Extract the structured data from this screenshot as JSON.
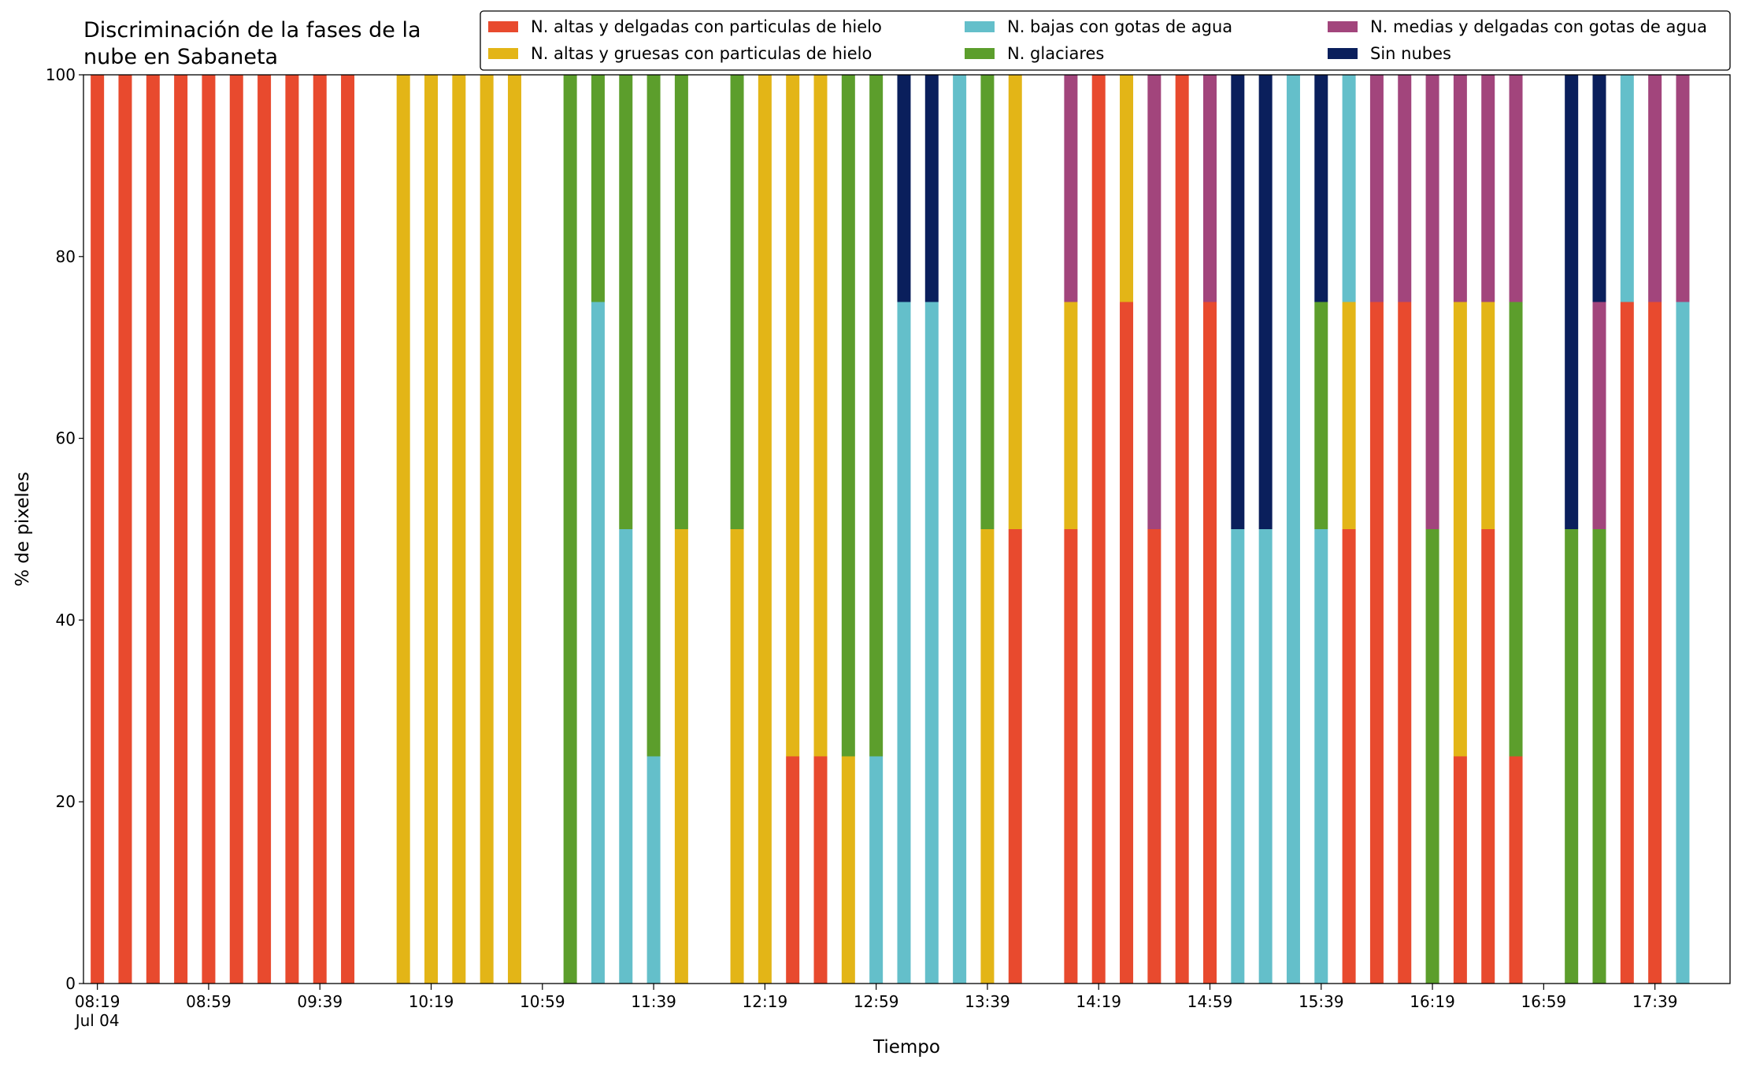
{
  "chart_data": {
    "type": "bar",
    "stacked": true,
    "title": "Discriminación de la fases de la nube en Sabaneta",
    "xlabel": "Tiempo",
    "ylabel": "% de pixeles",
    "x": [
      "08:19",
      "08:29",
      "08:39",
      "08:49",
      "08:59",
      "09:09",
      "09:19",
      "09:29",
      "09:39",
      "09:49",
      "10:09",
      "10:19",
      "10:29",
      "10:39",
      "10:49",
      "11:09",
      "11:19",
      "11:29",
      "11:39",
      "11:49",
      "12:09",
      "12:19",
      "12:29",
      "12:39",
      "12:49",
      "12:59",
      "13:09",
      "13:19",
      "13:29",
      "13:39",
      "13:49",
      "14:09",
      "14:19",
      "14:29",
      "14:39",
      "14:49",
      "14:59",
      "15:09",
      "15:19",
      "15:29",
      "15:39",
      "15:49",
      "15:59",
      "16:09",
      "16:19",
      "16:29",
      "16:39",
      "16:49",
      "17:09",
      "17:19",
      "17:29",
      "17:39",
      "17:49"
    ],
    "series": [
      {
        "name": "N. altas y delgadas con particulas de hielo",
        "color": "#e84a2e",
        "values": [
          100,
          100,
          100,
          100,
          100,
          100,
          100,
          100,
          100,
          100,
          0,
          0,
          0,
          0,
          0,
          0,
          0,
          0,
          0,
          0,
          0,
          0,
          25,
          25,
          0,
          0,
          0,
          0,
          0,
          0,
          50,
          50,
          100,
          75,
          50,
          100,
          75,
          0,
          0,
          0,
          0,
          50,
          75,
          75,
          0,
          25,
          50,
          25,
          0,
          0,
          75,
          75,
          0
        ]
      },
      {
        "name": "N. altas y gruesas con particulas de hielo",
        "color": "#e3b517",
        "values": [
          0,
          0,
          0,
          0,
          0,
          0,
          0,
          0,
          0,
          0,
          100,
          100,
          100,
          100,
          100,
          0,
          0,
          0,
          0,
          50,
          50,
          100,
          75,
          75,
          25,
          0,
          0,
          0,
          0,
          50,
          50,
          25,
          0,
          25,
          0,
          0,
          0,
          0,
          0,
          0,
          0,
          25,
          0,
          0,
          0,
          50,
          25,
          0,
          0,
          0,
          0,
          0,
          0
        ]
      },
      {
        "name": "N. bajas con gotas de agua",
        "color": "#64bfca",
        "values": [
          0,
          0,
          0,
          0,
          0,
          0,
          0,
          0,
          0,
          0,
          0,
          0,
          0,
          0,
          0,
          0,
          75,
          50,
          25,
          0,
          0,
          0,
          0,
          0,
          0,
          25,
          75,
          75,
          100,
          0,
          0,
          0,
          0,
          0,
          0,
          0,
          0,
          50,
          50,
          100,
          50,
          25,
          0,
          0,
          0,
          0,
          0,
          0,
          0,
          0,
          25,
          0,
          75
        ]
      },
      {
        "name": "N. glaciares",
        "color": "#5c9e2c",
        "values": [
          0,
          0,
          0,
          0,
          0,
          0,
          0,
          0,
          0,
          0,
          0,
          0,
          0,
          0,
          0,
          100,
          25,
          50,
          75,
          50,
          50,
          0,
          0,
          0,
          75,
          75,
          0,
          0,
          0,
          50,
          0,
          0,
          0,
          0,
          0,
          0,
          0,
          0,
          0,
          0,
          25,
          0,
          0,
          0,
          50,
          0,
          0,
          50,
          50,
          50,
          0,
          0,
          0
        ]
      },
      {
        "name": "N. medias y delgadas con gotas de agua",
        "color": "#a2457c",
        "values": [
          0,
          0,
          0,
          0,
          0,
          0,
          0,
          0,
          0,
          0,
          0,
          0,
          0,
          0,
          0,
          0,
          0,
          0,
          0,
          0,
          0,
          0,
          0,
          0,
          0,
          0,
          0,
          0,
          0,
          0,
          0,
          25,
          0,
          0,
          50,
          0,
          25,
          0,
          0,
          0,
          0,
          0,
          25,
          25,
          50,
          25,
          25,
          25,
          0,
          25,
          0,
          25,
          25
        ]
      },
      {
        "name": "Sin nubes",
        "color": "#0a1f5c",
        "values": [
          0,
          0,
          0,
          0,
          0,
          0,
          0,
          0,
          0,
          0,
          0,
          0,
          0,
          0,
          0,
          0,
          0,
          0,
          0,
          0,
          0,
          0,
          0,
          0,
          0,
          0,
          25,
          25,
          0,
          0,
          0,
          0,
          0,
          0,
          0,
          0,
          0,
          50,
          50,
          0,
          25,
          0,
          0,
          0,
          0,
          0,
          0,
          0,
          50,
          25,
          0,
          0,
          0
        ]
      }
    ],
    "xlim": [
      "08:14",
      "18:06"
    ],
    "xticks": [
      "08:19",
      "08:59",
      "09:39",
      "10:19",
      "10:59",
      "11:39",
      "12:19",
      "12:59",
      "13:39",
      "14:19",
      "14:59",
      "15:39",
      "16:19",
      "16:59",
      "17:39"
    ],
    "xtick_date": "Jul 04",
    "ylim": [
      0,
      100
    ],
    "yticks": [
      0,
      20,
      40,
      60,
      80,
      100
    ],
    "legend": "top-right",
    "grid": false
  }
}
